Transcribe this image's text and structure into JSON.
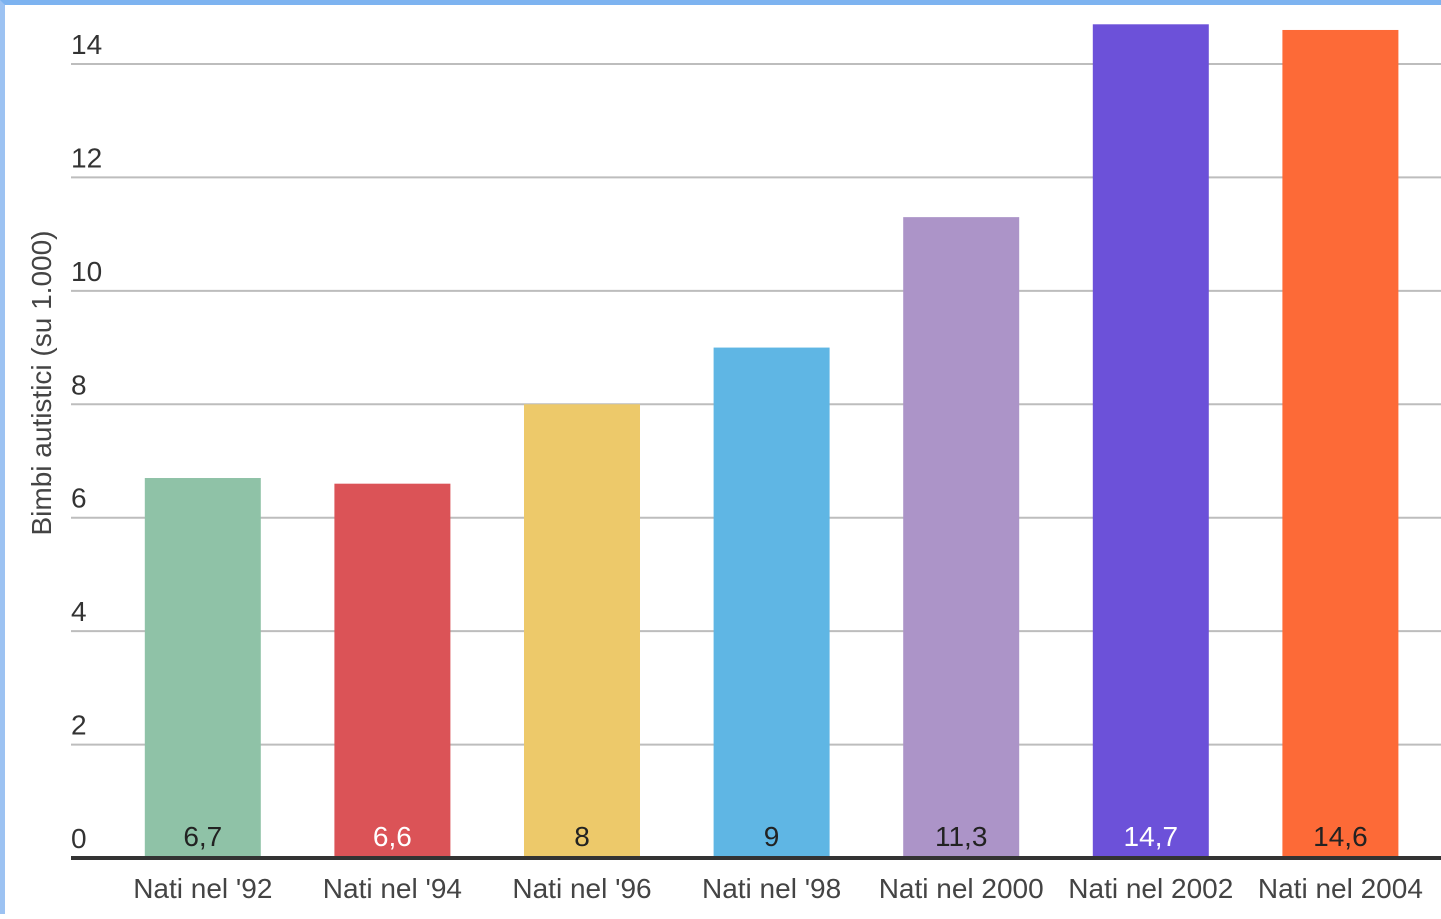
{
  "chart_data": {
    "type": "bar",
    "title": "",
    "xlabel": "",
    "ylabel": "Bimbi autistici (su 1.000)",
    "ylim": [
      0,
      14
    ],
    "yticks": [
      0,
      2,
      4,
      6,
      8,
      10,
      12,
      14
    ],
    "grid": true,
    "categories": [
      "Nati nel '92",
      "Nati nel '94",
      "Nati nel '96",
      "Nati nel '98",
      "Nati nel 2000",
      "Nati nel 2002",
      "Nati nel 2004"
    ],
    "values": [
      6.7,
      6.6,
      8,
      9,
      11.3,
      14.7,
      14.6
    ],
    "data_labels": [
      "6,7",
      "6,6",
      "8",
      "9",
      "11,3",
      "14,7",
      "14,6"
    ],
    "colors": [
      "#8fc2a7",
      "#db5357",
      "#edc96a",
      "#5fb6e4",
      "#ac94c8",
      "#6c51d9",
      "#fd6a37"
    ],
    "label_colors": [
      "#222222",
      "#ffffff",
      "#222222",
      "#222222",
      "#222222",
      "#ffffff",
      "#222222"
    ]
  }
}
